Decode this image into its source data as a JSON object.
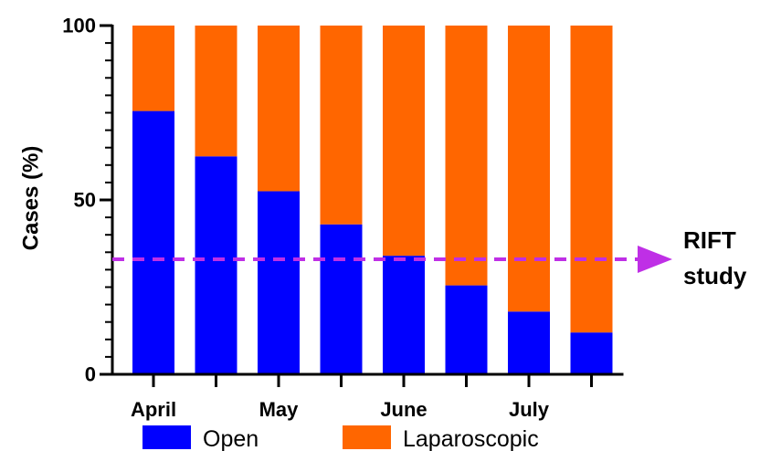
{
  "chart_data": {
    "type": "bar",
    "stacked": true,
    "ylabel": "Cases (%)",
    "ylim": [
      0,
      100
    ],
    "yticks": [
      0,
      50,
      100
    ],
    "categories": [
      "April",
      "",
      "May",
      "",
      "June",
      "",
      "July",
      ""
    ],
    "series": [
      {
        "name": "Open",
        "color": "#0000ff",
        "values": [
          75.5,
          62.5,
          52.5,
          43,
          34,
          25.5,
          18,
          12
        ]
      },
      {
        "name": "Laparoscopic",
        "color": "#ff6600",
        "values": [
          24.5,
          37.5,
          47.5,
          57,
          66,
          74.5,
          82,
          88
        ]
      }
    ],
    "reference_line": {
      "value": 33,
      "label_line1": "RIFT",
      "label_line2": "study",
      "color": "#bf2fe6"
    },
    "legend_position": "bottom",
    "grid": false
  }
}
